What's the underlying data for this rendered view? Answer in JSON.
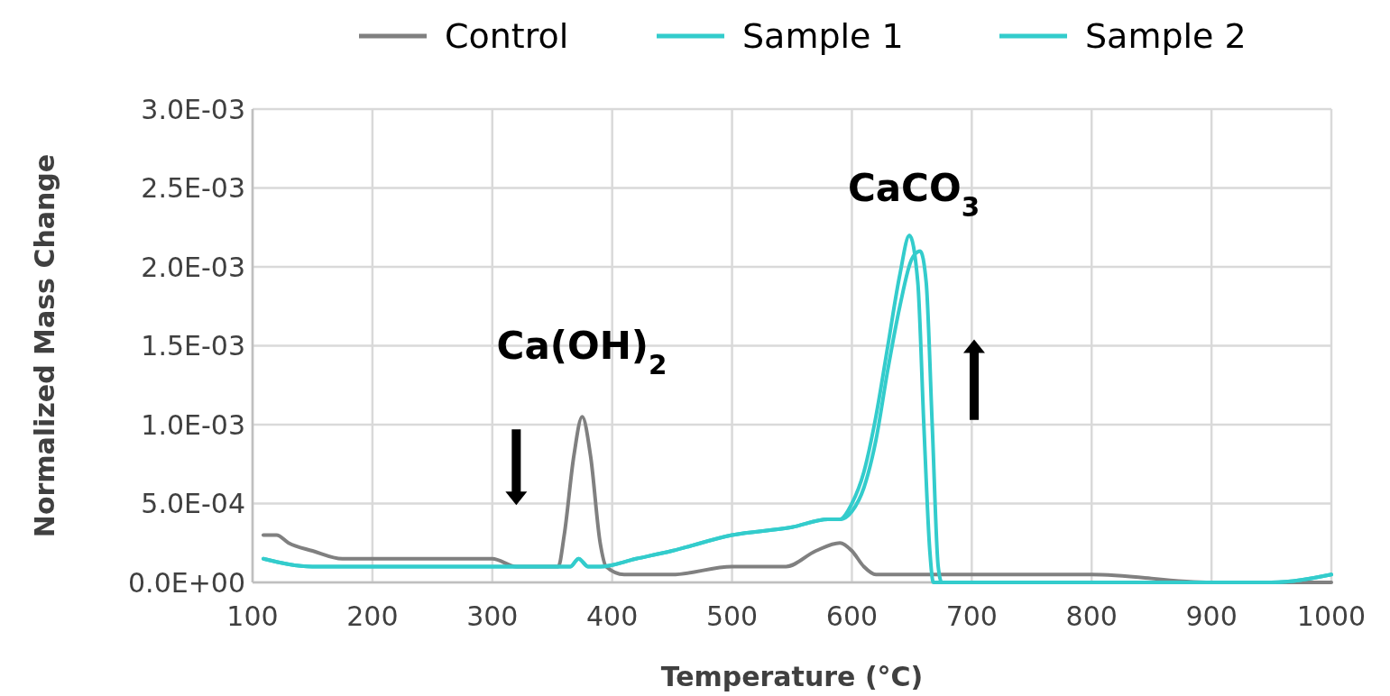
{
  "chart_data": {
    "type": "line",
    "xlabel": "Temperature (°C)",
    "ylabel": "Normalized Mass Change",
    "xlim": [
      100,
      1000
    ],
    "xticks": [
      100,
      200,
      300,
      400,
      500,
      600,
      700,
      800,
      900,
      1000
    ],
    "ylim": [
      0,
      0.003
    ],
    "yticks": [
      {
        "value": 0,
        "label": "0.0E+00"
      },
      {
        "value": 0.0005,
        "label": "5.0E-04"
      },
      {
        "value": 0.001,
        "label": "1.0E-03"
      },
      {
        "value": 0.0015,
        "label": "1.5E-03"
      },
      {
        "value": 0.002,
        "label": "2.0E-03"
      },
      {
        "value": 0.0025,
        "label": "2.5E-03"
      },
      {
        "value": 0.003,
        "label": "3.0E-03"
      }
    ],
    "grid": true,
    "legend": "top",
    "line_style": "solid",
    "marker": "none",
    "series": [
      {
        "name": "Control",
        "color": "#808080",
        "x": [
          109,
          120,
          130,
          150,
          175,
          200,
          250,
          300,
          320,
          340,
          355,
          360,
          368,
          375,
          382,
          390,
          395,
          410,
          450,
          500,
          520,
          545,
          570,
          590,
          600,
          610,
          620,
          700,
          800,
          900,
          1000
        ],
        "values": [
          0.0003,
          0.0003,
          0.00025,
          0.0002,
          0.00015,
          0.00015,
          0.00015,
          0.00015,
          0.0001,
          0.0001,
          0.0001,
          0.0003,
          0.0008,
          0.00105,
          0.0008,
          0.00025,
          0.0001,
          5e-05,
          5e-05,
          0.0001,
          0.0001,
          0.0001,
          0.0002,
          0.00025,
          0.0002,
          0.0001,
          5e-05,
          5e-05,
          5e-05,
          0,
          0
        ]
      },
      {
        "name": "Sample 1",
        "color": "#33cccc",
        "x": [
          109,
          150,
          200,
          300,
          350,
          365,
          372,
          380,
          390,
          420,
          450,
          500,
          550,
          580,
          590,
          600,
          610,
          620,
          630,
          640,
          648,
          655,
          660,
          665,
          668,
          700,
          800,
          900,
          950,
          1000
        ],
        "values": [
          0.00015,
          0.0001,
          0.0001,
          0.0001,
          0.0001,
          0.0001,
          0.00015,
          0.0001,
          0.0001,
          0.00015,
          0.0002,
          0.0003,
          0.00035,
          0.0004,
          0.0004,
          0.0005,
          0.0007,
          0.00105,
          0.0015,
          0.00195,
          0.0022,
          0.0019,
          0.001,
          0.0002,
          0,
          0,
          0,
          0,
          0,
          5e-05
        ]
      },
      {
        "name": "Sample 2",
        "color": "#33cccc",
        "x": [
          109,
          150,
          200,
          300,
          350,
          365,
          372,
          380,
          390,
          420,
          450,
          500,
          550,
          580,
          590,
          600,
          610,
          620,
          630,
          640,
          650,
          657,
          662,
          667,
          672,
          675,
          700,
          800,
          900,
          950,
          1000
        ],
        "values": [
          0.00015,
          0.0001,
          0.0001,
          0.0001,
          0.0001,
          0.0001,
          0.00015,
          0.0001,
          0.0001,
          0.00015,
          0.0002,
          0.0003,
          0.00035,
          0.0004,
          0.0004,
          0.00045,
          0.0006,
          0.0009,
          0.00135,
          0.00175,
          0.00205,
          0.0021,
          0.0019,
          0.001,
          0.0001,
          0,
          0,
          0,
          0,
          0,
          5e-05
        ]
      }
    ],
    "annotations": [
      "Ca(OH)$_{2}$",
      "CaCO$_{3}$"
    ]
  }
}
